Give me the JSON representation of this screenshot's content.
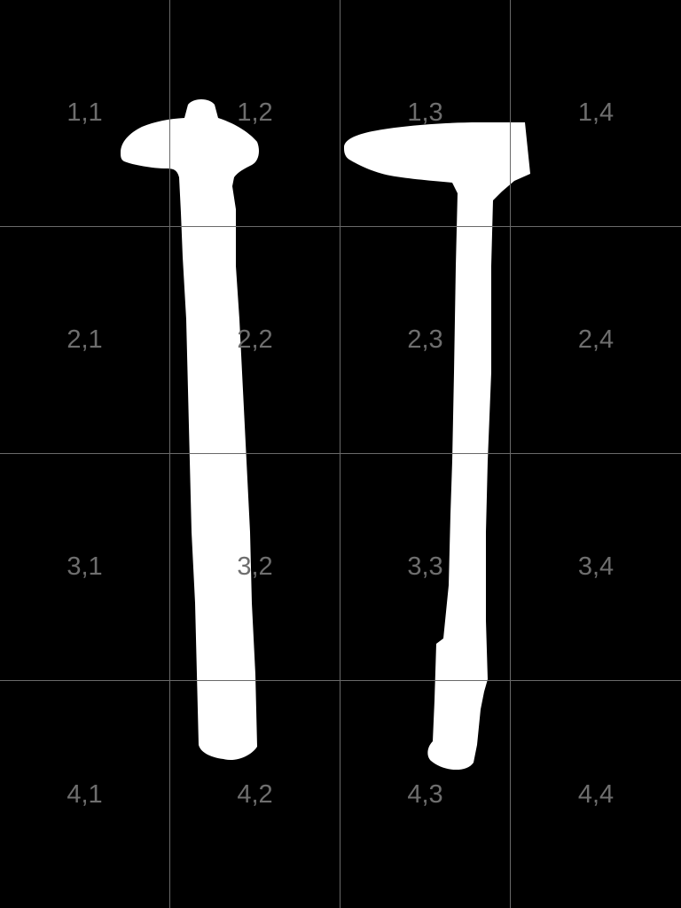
{
  "canvas": {
    "background": "#000000",
    "grid_color": "#6a6a6a",
    "label_color": "#6e6e6e",
    "shape_color": "#ffffff"
  },
  "grid": {
    "rows": 4,
    "cols": 4,
    "cells": [
      [
        "1,1",
        "1,2",
        "1,3",
        "1,4"
      ],
      [
        "2,1",
        "2,2",
        "2,3",
        "2,4"
      ],
      [
        "3,1",
        "3,2",
        "3,3",
        "3,4"
      ],
      [
        "4,1",
        "4,2",
        "4,3",
        "4,4"
      ]
    ]
  },
  "shapes": [
    {
      "name": "left-stroke-shape"
    },
    {
      "name": "right-stroke-shape"
    }
  ]
}
